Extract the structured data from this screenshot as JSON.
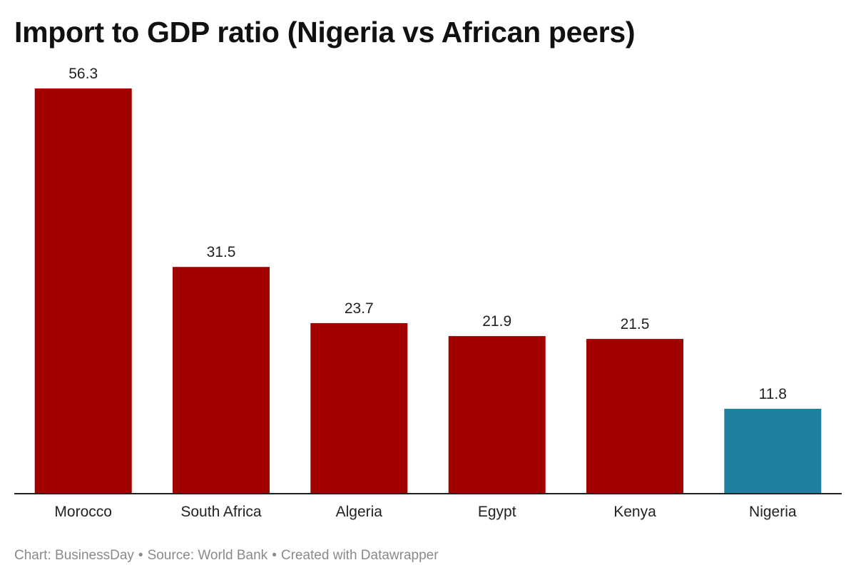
{
  "chart_data": {
    "type": "bar",
    "title": "Import to GDP ratio (Nigeria vs African peers)",
    "categories": [
      "Morocco",
      "South Africa",
      "Algeria",
      "Egypt",
      "Kenya",
      "Nigeria"
    ],
    "values": [
      56.3,
      31.5,
      23.7,
      21.9,
      21.5,
      11.8
    ],
    "value_labels": [
      "56.3",
      "31.5",
      "23.7",
      "21.9",
      "21.5",
      "11.8"
    ],
    "bar_colors": [
      "#a30000",
      "#a30000",
      "#a30000",
      "#a30000",
      "#a30000",
      "#1f80a0"
    ],
    "xlabel": "",
    "ylabel": "",
    "ylim": [
      0,
      56.3
    ],
    "grid": false,
    "legend": "none"
  },
  "footer": {
    "chart_credit": "Chart: BusinessDay",
    "source": "Source: World Bank",
    "created_with": "Created with Datawrapper",
    "separator": "•"
  },
  "colors": {
    "highlight": "#1f80a0",
    "default_bar": "#a30000",
    "baseline": "#222222"
  }
}
